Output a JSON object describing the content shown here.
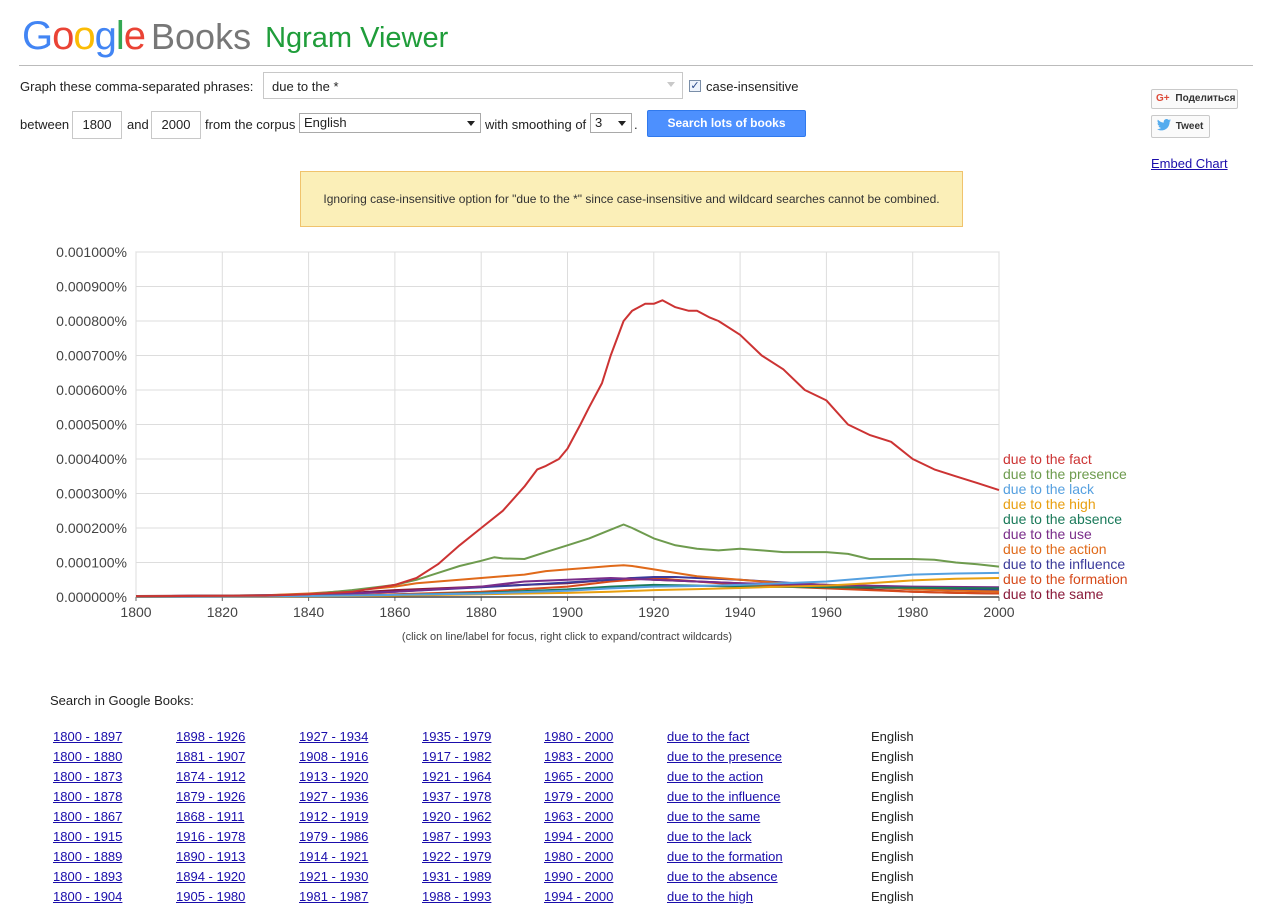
{
  "header": {
    "logo_google": "Google",
    "logo_books": "Books",
    "logo_ngram": "Ngram Viewer"
  },
  "form": {
    "phrase_label": "Graph these comma-separated phrases:",
    "phrase_value": "due to the *",
    "case_insensitive_label": "case-insensitive",
    "case_insensitive_checked": true,
    "between_label": "between",
    "start_year": "1800",
    "and_label": "and",
    "end_year": "2000",
    "corpus_label": "from the corpus",
    "corpus_value": "English",
    "smoothing_label": "with smoothing of",
    "smoothing_value": "3",
    "period": ".",
    "search_button": "Search lots of books"
  },
  "share": {
    "gplus_label": "Поделиться",
    "tweet_label": "Tweet",
    "embed_chart": "Embed Chart"
  },
  "warning": "Ignoring case-insensitive option for \"due to the *\" since case-insensitive and wildcard searches cannot be combined.",
  "hint": "(click on line/label for focus, right click to expand/contract wildcards)",
  "search_in_books": {
    "title": "Search in Google Books:",
    "rows": [
      {
        "r": [
          "1800 - 1897",
          "1898 - 1926",
          "1927 - 1934",
          "1935 - 1979",
          "1980 - 2000"
        ],
        "phrase": "due to the fact",
        "corpus": "English"
      },
      {
        "r": [
          "1800 - 1880",
          "1881 - 1907",
          "1908 - 1916",
          "1917 - 1982",
          "1983 - 2000"
        ],
        "phrase": "due to the presence",
        "corpus": "English"
      },
      {
        "r": [
          "1800 - 1873",
          "1874 - 1912",
          "1913 - 1920",
          "1921 - 1964",
          "1965 - 2000"
        ],
        "phrase": "due to the action",
        "corpus": "English"
      },
      {
        "r": [
          "1800 - 1878",
          "1879 - 1926",
          "1927 - 1936",
          "1937 - 1978",
          "1979 - 2000"
        ],
        "phrase": "due to the influence",
        "corpus": "English"
      },
      {
        "r": [
          "1800 - 1867",
          "1868 - 1911",
          "1912 - 1919",
          "1920 - 1962",
          "1963 - 2000"
        ],
        "phrase": "due to the same",
        "corpus": "English"
      },
      {
        "r": [
          "1800 - 1915",
          "1916 - 1978",
          "1979 - 1986",
          "1987 - 1993",
          "1994 - 2000"
        ],
        "phrase": "due to the lack",
        "corpus": "English"
      },
      {
        "r": [
          "1800 - 1889",
          "1890 - 1913",
          "1914 - 1921",
          "1922 - 1979",
          "1980 - 2000"
        ],
        "phrase": "due to the formation",
        "corpus": "English"
      },
      {
        "r": [
          "1800 - 1893",
          "1894 - 1920",
          "1921 - 1930",
          "1931 - 1989",
          "1990 - 2000"
        ],
        "phrase": "due to the absence",
        "corpus": "English"
      },
      {
        "r": [
          "1800 - 1904",
          "1905 - 1980",
          "1981 - 1987",
          "1988 - 1993",
          "1994 - 2000"
        ],
        "phrase": "due to the high",
        "corpus": "English"
      }
    ]
  },
  "chart_data": {
    "type": "line",
    "x_range": [
      1800,
      2000
    ],
    "y_range": [
      0,
      0.001
    ],
    "y_unit": "%",
    "grid": true,
    "legend_placement": "right",
    "x_ticks": [
      "1800",
      "1820",
      "1840",
      "1860",
      "1880",
      "1900",
      "1920",
      "1940",
      "1960",
      "1980",
      "2000"
    ],
    "y_ticks": [
      "0.000000%",
      "0.000100%",
      "0.000200%",
      "0.000300%",
      "0.000400%",
      "0.000500%",
      "0.000600%",
      "0.000700%",
      "0.000800%",
      "0.000900%",
      "0.001000%"
    ],
    "series": [
      {
        "name": "due to the fact",
        "color": "#cc3333",
        "x": [
          1800,
          1830,
          1840,
          1850,
          1860,
          1865,
          1870,
          1875,
          1880,
          1885,
          1890,
          1893,
          1895,
          1898,
          1900,
          1903,
          1905,
          1908,
          1910,
          1913,
          1915,
          1918,
          1920,
          1922,
          1925,
          1928,
          1930,
          1933,
          1935,
          1940,
          1945,
          1950,
          1955,
          1960,
          1965,
          1970,
          1975,
          1980,
          1985,
          1990,
          1995,
          2000
        ],
        "y": [
          2e-06,
          4e-06,
          8e-06,
          1.5e-05,
          3.5e-05,
          5.5e-05,
          9.5e-05,
          0.00015,
          0.0002,
          0.00025,
          0.00032,
          0.00037,
          0.00038,
          0.0004,
          0.00043,
          0.0005,
          0.00055,
          0.00062,
          0.0007,
          0.0008,
          0.00083,
          0.00085,
          0.00085,
          0.00086,
          0.00084,
          0.00083,
          0.00083,
          0.00081,
          0.0008,
          0.00076,
          0.0007,
          0.00066,
          0.0006,
          0.00057,
          0.0005,
          0.00047,
          0.00045,
          0.0004,
          0.00037,
          0.00035,
          0.00033,
          0.00031
        ]
      },
      {
        "name": "due to the presence",
        "color": "#6e9b4e",
        "x": [
          1800,
          1830,
          1840,
          1850,
          1860,
          1865,
          1870,
          1875,
          1880,
          1883,
          1885,
          1890,
          1895,
          1900,
          1905,
          1910,
          1913,
          1915,
          1920,
          1925,
          1930,
          1935,
          1940,
          1945,
          1950,
          1955,
          1960,
          1965,
          1970,
          1975,
          1980,
          1985,
          1990,
          1995,
          2000
        ],
        "y": [
          2e-06,
          4e-06,
          8e-06,
          2e-05,
          3.5e-05,
          5e-05,
          7e-05,
          9e-05,
          0.000105,
          0.000115,
          0.000112,
          0.00011,
          0.00013,
          0.00015,
          0.00017,
          0.000195,
          0.00021,
          0.0002,
          0.00017,
          0.00015,
          0.00014,
          0.000135,
          0.00014,
          0.000135,
          0.00013,
          0.00013,
          0.00013,
          0.000125,
          0.00011,
          0.00011,
          0.00011,
          0.000108,
          0.0001,
          9.5e-05,
          8.8e-05
        ]
      },
      {
        "name": "due to the lack",
        "color": "#55a0e0",
        "x": [
          1800,
          1840,
          1860,
          1880,
          1900,
          1910,
          1920,
          1930,
          1940,
          1950,
          1960,
          1970,
          1980,
          1990,
          2000
        ],
        "y": [
          1e-06,
          3e-06,
          6e-06,
          1e-05,
          1.8e-05,
          2.5e-05,
          3e-05,
          3.2e-05,
          3.5e-05,
          4e-05,
          4.5e-05,
          5.5e-05,
          6.5e-05,
          6.8e-05,
          7e-05
        ]
      },
      {
        "name": "due to the high",
        "color": "#e89f10",
        "x": [
          1800,
          1840,
          1860,
          1880,
          1900,
          1910,
          1920,
          1930,
          1940,
          1950,
          1960,
          1970,
          1980,
          1990,
          2000
        ],
        "y": [
          1e-06,
          2e-06,
          4e-06,
          8e-06,
          1.2e-05,
          1.5e-05,
          2e-05,
          2.3e-05,
          2.6e-05,
          3e-05,
          3.3e-05,
          4e-05,
          4.8e-05,
          5.3e-05,
          5.5e-05
        ]
      },
      {
        "name": "due to the absence",
        "color": "#1a7a5a",
        "x": [
          1800,
          1840,
          1860,
          1880,
          1900,
          1910,
          1920,
          1930,
          1940,
          1960,
          1980,
          2000
        ],
        "y": [
          1e-06,
          3e-06,
          6e-06,
          1.2e-05,
          2.2e-05,
          3e-05,
          3.5e-05,
          3.3e-05,
          3e-05,
          2.8e-05,
          2.7e-05,
          2.5e-05
        ]
      },
      {
        "name": "due to the use",
        "color": "#7a2d8a",
        "x": [
          1800,
          1840,
          1860,
          1880,
          1890,
          1900,
          1910,
          1920,
          1930,
          1940,
          1960,
          1980,
          2000
        ],
        "y": [
          2e-06,
          6e-06,
          1.5e-05,
          3e-05,
          4.5e-05,
          5e-05,
          5.5e-05,
          5e-05,
          4.5e-05,
          4e-05,
          3.5e-05,
          3e-05,
          2.8e-05
        ]
      },
      {
        "name": "due to the action",
        "color": "#e06a1a",
        "x": [
          1800,
          1830,
          1840,
          1850,
          1860,
          1865,
          1870,
          1875,
          1880,
          1885,
          1890,
          1895,
          1900,
          1905,
          1910,
          1913,
          1915,
          1920,
          1925,
          1930,
          1935,
          1940,
          1950,
          1960,
          1970,
          1980,
          1990,
          2000
        ],
        "y": [
          2e-06,
          5e-06,
          1e-05,
          1.8e-05,
          3e-05,
          4e-05,
          4.5e-05,
          5e-05,
          5.5e-05,
          6e-05,
          6.5e-05,
          7.5e-05,
          8e-05,
          8.5e-05,
          9e-05,
          9.2e-05,
          9e-05,
          8e-05,
          7e-05,
          6e-05,
          5.5e-05,
          5e-05,
          4e-05,
          3.5e-05,
          2.8e-05,
          2.2e-05,
          1.8e-05,
          1.6e-05
        ]
      },
      {
        "name": "due to the influence",
        "color": "#3a3a9a",
        "x": [
          1800,
          1840,
          1860,
          1880,
          1890,
          1900,
          1910,
          1915,
          1920,
          1925,
          1930,
          1940,
          1950,
          1960,
          1970,
          1980,
          1990,
          2000
        ],
        "y": [
          2e-06,
          6e-06,
          1.5e-05,
          2.8e-05,
          3.5e-05,
          4.2e-05,
          5e-05,
          5.5e-05,
          5.8e-05,
          5.8e-05,
          5.5e-05,
          5e-05,
          4.2e-05,
          3.5e-05,
          3e-05,
          2.6e-05,
          2.2e-05,
          2e-05
        ]
      },
      {
        "name": "due to the formation",
        "color": "#d64a1a",
        "x": [
          1800,
          1840,
          1860,
          1880,
          1900,
          1910,
          1920,
          1930,
          1940,
          1950,
          1960,
          1970,
          1980,
          1990,
          2000
        ],
        "y": [
          1e-06,
          3e-06,
          8e-06,
          1.5e-05,
          3e-05,
          4.5e-05,
          5.5e-05,
          4.5e-05,
          3.5e-05,
          3e-05,
          2.5e-05,
          2e-05,
          1.5e-05,
          1.2e-05,
          1e-05
        ]
      },
      {
        "name": "due to the same",
        "color": "#8a1a3a",
        "x": [
          1800,
          1830,
          1840,
          1850,
          1860,
          1870,
          1880,
          1890,
          1900,
          1905,
          1910,
          1915,
          1920,
          1930,
          1940,
          1950,
          1960,
          1970,
          1980,
          1990,
          2000
        ],
        "y": [
          3e-06,
          5e-06,
          8e-06,
          1.2e-05,
          2e-05,
          2.5e-05,
          3e-05,
          3.5e-05,
          4e-05,
          4.5e-05,
          5e-05,
          5.5e-05,
          5e-05,
          4.5e-05,
          4e-05,
          3.5e-05,
          3e-05,
          2.2e-05,
          1.5e-05,
          1.2e-05,
          1e-05
        ]
      }
    ]
  }
}
